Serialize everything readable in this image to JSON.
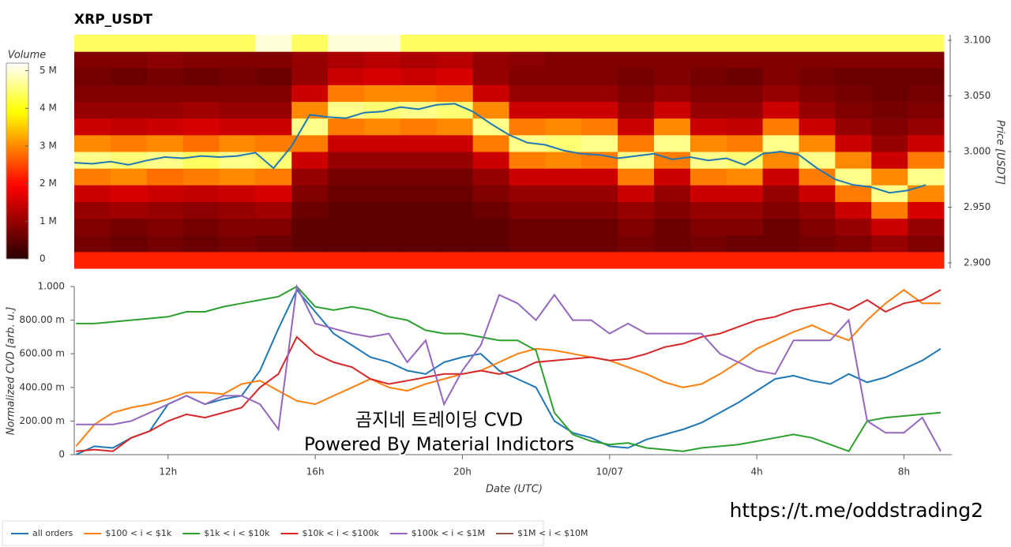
{
  "chart_data": [
    {
      "type": "heatmap",
      "title": "XRP_USDT",
      "ylabel": "Price [USDT]",
      "colormap": "hot",
      "x_bins": [
        9.5,
        10.5,
        11.5,
        12.5,
        13.5,
        14.5,
        15.5,
        16.5,
        17.5,
        18.5,
        19.5,
        20.5,
        21.5,
        22.5,
        23.5,
        24.5,
        25.5,
        26.5,
        27.5,
        28.5,
        29.5,
        30.5,
        31.5,
        32.5,
        33.5
      ],
      "y_bins": [
        2.895,
        2.91,
        2.925,
        2.94,
        2.955,
        2.97,
        2.985,
        3.0,
        3.015,
        3.03,
        3.045,
        3.06,
        3.075,
        3.09,
        3.105
      ],
      "xlim": [
        9.5,
        33.5
      ],
      "ylim": [
        2.895,
        3.105
      ],
      "yticks": [
        {
          "value": 2.9,
          "label": "2.900"
        },
        {
          "value": 2.95,
          "label": "2.950"
        },
        {
          "value": 3.0,
          "label": "3.000"
        },
        {
          "value": 3.05,
          "label": "3.050"
        },
        {
          "value": 3.1,
          "label": "3.100"
        }
      ],
      "values": [
        [
          2.2,
          2.2,
          2.2,
          2.2,
          2.2,
          2.2,
          2.2,
          2.2,
          2.2,
          2.2,
          2.2,
          2.2,
          2.2,
          2.2,
          2.2,
          2.2,
          2.2,
          2.2,
          2.2,
          2.2,
          2.2,
          2.2,
          2.2,
          2.2
        ],
        [
          0.7,
          0.6,
          0.7,
          0.6,
          0.7,
          0.6,
          0.5,
          0.5,
          0.5,
          0.5,
          0.5,
          0.5,
          0.6,
          0.6,
          0.6,
          0.7,
          0.6,
          0.7,
          0.6,
          0.6,
          0.7,
          0.8,
          1.0,
          0.8
        ],
        [
          0.8,
          0.7,
          0.8,
          0.7,
          0.8,
          0.8,
          0.5,
          0.5,
          0.5,
          0.5,
          0.5,
          0.5,
          0.6,
          0.6,
          0.6,
          0.8,
          0.6,
          0.8,
          0.8,
          0.6,
          0.8,
          1.0,
          1.5,
          1.0
        ],
        [
          1.0,
          1.1,
          1.0,
          0.9,
          1.0,
          1.1,
          0.6,
          0.5,
          0.5,
          0.5,
          0.5,
          0.6,
          0.8,
          0.8,
          0.8,
          1.0,
          0.8,
          1.0,
          1.0,
          0.8,
          1.0,
          1.5,
          2.9,
          1.6
        ],
        [
          1.5,
          1.6,
          1.5,
          1.4,
          1.5,
          1.6,
          0.8,
          0.6,
          0.6,
          0.6,
          0.6,
          0.8,
          1.0,
          1.0,
          1.0,
          1.5,
          1.0,
          1.5,
          1.5,
          1.0,
          1.5,
          2.9,
          4.6,
          3.0
        ],
        [
          2.9,
          3.0,
          2.8,
          2.9,
          3.0,
          2.9,
          1.0,
          0.7,
          0.7,
          0.7,
          0.7,
          1.0,
          1.5,
          1.5,
          1.5,
          2.9,
          1.5,
          2.9,
          3.0,
          1.5,
          2.9,
          4.6,
          3.0,
          4.6
        ],
        [
          4.6,
          4.5,
          4.6,
          4.4,
          4.6,
          4.5,
          1.5,
          1.0,
          1.0,
          1.0,
          1.0,
          1.5,
          2.9,
          3.0,
          2.9,
          4.6,
          2.9,
          4.6,
          4.5,
          3.0,
          4.6,
          3.0,
          1.5,
          2.9
        ],
        [
          3.0,
          2.9,
          3.0,
          2.8,
          3.0,
          2.9,
          2.9,
          1.5,
          1.5,
          1.5,
          1.5,
          2.9,
          4.6,
          4.5,
          4.6,
          2.9,
          4.6,
          3.0,
          2.9,
          4.6,
          3.0,
          1.5,
          1.0,
          1.5
        ],
        [
          1.5,
          1.4,
          1.5,
          1.6,
          1.5,
          1.5,
          4.6,
          2.9,
          3.0,
          2.9,
          3.0,
          4.6,
          2.9,
          3.0,
          2.9,
          1.5,
          3.0,
          1.5,
          1.4,
          2.9,
          1.5,
          1.0,
          0.8,
          1.0
        ],
        [
          1.0,
          1.0,
          1.0,
          1.1,
          1.0,
          1.0,
          3.0,
          4.6,
          4.5,
          4.6,
          4.5,
          3.0,
          1.5,
          1.5,
          1.5,
          1.0,
          1.5,
          1.0,
          1.0,
          1.5,
          1.0,
          0.8,
          0.7,
          0.8
        ],
        [
          0.8,
          0.8,
          0.8,
          0.8,
          0.8,
          0.8,
          1.5,
          2.9,
          3.0,
          3.0,
          2.9,
          1.5,
          1.0,
          1.0,
          1.0,
          0.8,
          1.0,
          0.8,
          0.8,
          1.0,
          0.8,
          0.7,
          0.6,
          0.7
        ],
        [
          0.7,
          0.6,
          0.7,
          0.6,
          0.7,
          0.6,
          1.0,
          1.5,
          1.6,
          1.5,
          1.6,
          1.0,
          0.8,
          0.8,
          0.8,
          0.7,
          0.8,
          0.7,
          0.6,
          0.8,
          0.7,
          0.6,
          0.6,
          0.6
        ],
        [
          0.8,
          0.8,
          0.9,
          0.8,
          0.8,
          0.8,
          1.0,
          1.2,
          1.3,
          1.2,
          1.3,
          1.0,
          0.9,
          0.8,
          0.8,
          0.8,
          0.8,
          0.8,
          0.8,
          0.8,
          0.8,
          0.8,
          0.8,
          0.8
        ],
        [
          4.4,
          4.4,
          4.4,
          4.4,
          4.4,
          5.0,
          4.4,
          5.0,
          5.0,
          4.4,
          4.4,
          4.4,
          4.4,
          4.4,
          4.4,
          4.4,
          4.4,
          4.4,
          4.4,
          4.4,
          4.4,
          4.4,
          4.4,
          4.4
        ]
      ],
      "colorbar": {
        "label": "Volume",
        "lim": [
          0,
          5.2
        ],
        "ticks": [
          0,
          {
            "value": 1,
            "label": "1 M"
          },
          {
            "value": 2,
            "label": "2 M"
          },
          {
            "value": 3,
            "label": "3 M"
          },
          {
            "value": 4,
            "label": "4 M"
          },
          {
            "value": 5,
            "label": "5 M"
          }
        ]
      },
      "price_line": {
        "color": "#1f77b4",
        "x": [
          9.5,
          10,
          10.5,
          11,
          11.5,
          12,
          12.5,
          13,
          13.5,
          14,
          14.5,
          15,
          15.5,
          16,
          16.5,
          17,
          17.5,
          18,
          18.5,
          19,
          19.5,
          20,
          20.5,
          21,
          21.5,
          22,
          22.5,
          23,
          23.5,
          24,
          24.5,
          25,
          25.5,
          26,
          26.5,
          27,
          27.5,
          28,
          28.5,
          29,
          29.5,
          30,
          30.5,
          31,
          31.5,
          32,
          32.5,
          33
        ],
        "values": [
          2.99,
          2.989,
          2.991,
          2.988,
          2.992,
          2.995,
          2.994,
          2.996,
          2.995,
          2.996,
          2.999,
          2.985,
          3.005,
          3.033,
          3.031,
          3.03,
          3.035,
          3.036,
          3.04,
          3.038,
          3.042,
          3.043,
          3.036,
          3.025,
          3.015,
          3.008,
          3.006,
          3.001,
          2.998,
          2.997,
          2.994,
          2.996,
          2.998,
          2.993,
          2.995,
          2.992,
          2.994,
          2.988,
          2.998,
          3.0,
          2.997,
          2.985,
          2.975,
          2.97,
          2.968,
          2.963,
          2.965,
          2.97
        ]
      }
    },
    {
      "type": "line",
      "xlabel": "Date (UTC)",
      "ylabel": "Normalized CVD [arb. u.]",
      "xlim": [
        9.45,
        33.3
      ],
      "ylim": [
        0,
        1
      ],
      "xticks": [
        {
          "value": 12,
          "label": "12h"
        },
        {
          "value": 16,
          "label": "16h"
        },
        {
          "value": 20,
          "label": "20h"
        },
        {
          "value": 24,
          "label": "10/07"
        },
        {
          "value": 28,
          "label": "4h"
        },
        {
          "value": 32,
          "label": "8h"
        }
      ],
      "yticks": [
        0,
        {
          "value": 0.2,
          "label": "200.00 m"
        },
        {
          "value": 0.4,
          "label": "400.00 m"
        },
        {
          "value": 0.6,
          "label": "600.00 m"
        },
        {
          "value": 0.8,
          "label": "800.00 m"
        },
        {
          "value": 1,
          "label": "1.000"
        }
      ],
      "legend": "bottom-left",
      "annotations": [
        "곰지네 트레이딩 CVD",
        "Powered By Material Indictors"
      ],
      "x": [
        9.5,
        10,
        10.5,
        11,
        11.5,
        12,
        12.5,
        13,
        13.5,
        14,
        14.5,
        15,
        15.5,
        16,
        16.5,
        17,
        17.5,
        18,
        18.5,
        19,
        19.5,
        20,
        20.5,
        21,
        21.5,
        22,
        22.5,
        23,
        23.5,
        24,
        24.5,
        25,
        25.5,
        26,
        26.5,
        27,
        27.5,
        28,
        28.5,
        29,
        29.5,
        30,
        30.5,
        31,
        31.5,
        32,
        32.5,
        33
      ],
      "series": [
        {
          "name": "all orders",
          "color": "#1f77b4",
          "values": [
            0.0,
            0.05,
            0.04,
            0.1,
            0.14,
            0.3,
            0.35,
            0.3,
            0.33,
            0.35,
            0.5,
            0.75,
            0.98,
            0.85,
            0.72,
            0.65,
            0.58,
            0.55,
            0.5,
            0.48,
            0.55,
            0.58,
            0.6,
            0.5,
            0.45,
            0.4,
            0.2,
            0.13,
            0.1,
            0.05,
            0.04,
            0.09,
            0.12,
            0.15,
            0.19,
            0.25,
            0.31,
            0.38,
            0.45,
            0.47,
            0.44,
            0.42,
            0.48,
            0.43,
            0.46,
            0.51,
            0.56,
            0.63
          ]
        },
        {
          "name": "$100 < i < $1k",
          "color": "#ff7f0e",
          "values": [
            0.05,
            0.18,
            0.25,
            0.28,
            0.3,
            0.33,
            0.37,
            0.37,
            0.36,
            0.42,
            0.44,
            0.38,
            0.32,
            0.3,
            0.35,
            0.4,
            0.45,
            0.4,
            0.38,
            0.42,
            0.45,
            0.48,
            0.5,
            0.55,
            0.6,
            0.63,
            0.62,
            0.6,
            0.58,
            0.56,
            0.52,
            0.48,
            0.43,
            0.4,
            0.42,
            0.48,
            0.55,
            0.63,
            0.68,
            0.73,
            0.77,
            0.72,
            0.68,
            0.8,
            0.9,
            0.98,
            0.9,
            0.9
          ]
        },
        {
          "name": "$1k < i < $10k",
          "color": "#2ca02c",
          "values": [
            0.78,
            0.78,
            0.79,
            0.8,
            0.81,
            0.82,
            0.85,
            0.85,
            0.88,
            0.9,
            0.92,
            0.94,
            1.0,
            0.88,
            0.86,
            0.88,
            0.86,
            0.82,
            0.8,
            0.74,
            0.72,
            0.72,
            0.7,
            0.68,
            0.68,
            0.62,
            0.25,
            0.12,
            0.08,
            0.06,
            0.07,
            0.04,
            0.03,
            0.02,
            0.04,
            0.05,
            0.06,
            0.08,
            0.1,
            0.12,
            0.1,
            0.06,
            0.02,
            0.2,
            0.22,
            0.23,
            0.24,
            0.25
          ]
        },
        {
          "name": "$10k < i < $100k",
          "color": "#d62728",
          "values": [
            0.02,
            0.03,
            0.02,
            0.1,
            0.14,
            0.2,
            0.24,
            0.22,
            0.25,
            0.28,
            0.4,
            0.48,
            0.7,
            0.6,
            0.55,
            0.52,
            0.45,
            0.42,
            0.44,
            0.46,
            0.48,
            0.48,
            0.5,
            0.48,
            0.5,
            0.55,
            0.56,
            0.57,
            0.58,
            0.56,
            0.57,
            0.6,
            0.64,
            0.66,
            0.7,
            0.72,
            0.76,
            0.8,
            0.82,
            0.86,
            0.88,
            0.9,
            0.86,
            0.92,
            0.85,
            0.9,
            0.92,
            0.98
          ]
        },
        {
          "name": "$100k < i < $1M",
          "color": "#9467bd",
          "values": [
            0.18,
            0.18,
            0.18,
            0.2,
            0.25,
            0.3,
            0.35,
            0.3,
            0.35,
            0.35,
            0.3,
            0.15,
            1.0,
            0.78,
            0.75,
            0.72,
            0.7,
            0.72,
            0.55,
            0.68,
            0.3,
            0.5,
            0.65,
            0.95,
            0.9,
            0.8,
            0.95,
            0.8,
            0.8,
            0.72,
            0.78,
            0.72,
            0.72,
            0.72,
            0.72,
            0.6,
            0.55,
            0.5,
            0.48,
            0.68,
            0.68,
            0.68,
            0.8,
            0.2,
            0.13,
            0.13,
            0.22,
            0.02
          ]
        },
        {
          "name": "$1M < i < $10M",
          "color": "#8c564b",
          "values": [
            null,
            null,
            null,
            null,
            null,
            null,
            null,
            null,
            null,
            null,
            null,
            null,
            null,
            null,
            null,
            null,
            null,
            null,
            null,
            null,
            null,
            null,
            null,
            null,
            null,
            null,
            null,
            null,
            null,
            null,
            null,
            null,
            null,
            null,
            null,
            null,
            null,
            null,
            null,
            null,
            null,
            null,
            null,
            null,
            null,
            null,
            null,
            null
          ]
        }
      ]
    }
  ],
  "footer": {
    "url": "https://t.me/oddstrading2"
  }
}
